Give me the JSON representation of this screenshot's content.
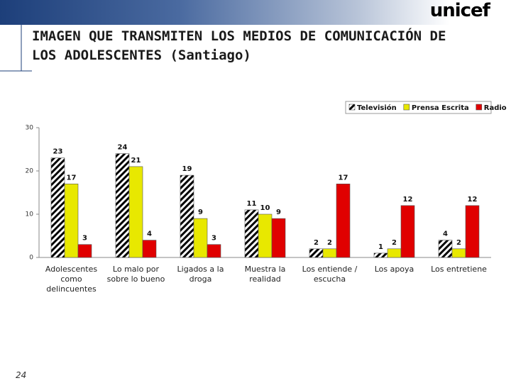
{
  "chart_data": {
    "type": "bar",
    "title": "IMAGEN QUE TRANSMITEN LOS MEDIOS DE COMUNICACIÓN DE LOS ADOLESCENTES (Santiago)",
    "categories": [
      "Adolescentes como delincuentes",
      "Lo malo por sobre lo bueno",
      "Ligados a la droga",
      "Muestra la realidad",
      "Los entiende / escucha",
      "Los apoya",
      "Los entretiene"
    ],
    "series": [
      {
        "name": "Televisión",
        "color": "#000000",
        "pattern": "hatch",
        "values": [
          23,
          24,
          19,
          11,
          2,
          1,
          4
        ]
      },
      {
        "name": "Prensa Escrita",
        "color": "#e8e800",
        "values": [
          17,
          21,
          9,
          10,
          2,
          2,
          2
        ]
      },
      {
        "name": "Radio",
        "color": "#e00000",
        "values": [
          3,
          4,
          3,
          9,
          17,
          12,
          12
        ]
      }
    ],
    "ylim": [
      0,
      30
    ],
    "yticks": [
      0,
      10,
      20,
      30
    ],
    "grid": false,
    "legend": "top-right"
  },
  "logo": "unicef",
  "page_number": "24"
}
